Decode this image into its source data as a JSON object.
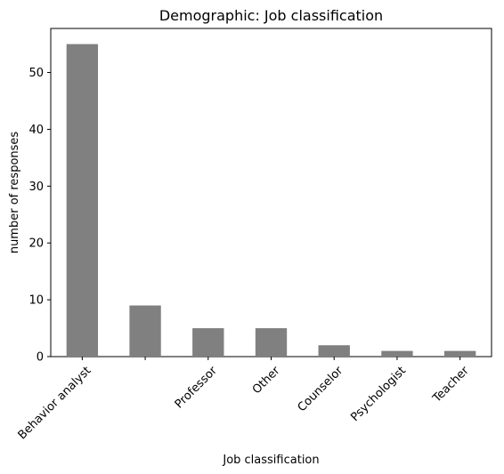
{
  "chart_data": {
    "type": "bar",
    "title": "Demographic: Job classification",
    "xlabel": "Job classification",
    "ylabel": "number of responses",
    "categories": [
      "Behavior analyst",
      "",
      "Professor",
      "Other",
      "Counselor",
      "Psychologist",
      "Teacher"
    ],
    "values": [
      55,
      9,
      5,
      5,
      2,
      1,
      1
    ],
    "ylim": [
      0,
      57.75
    ],
    "yticks": [
      0,
      10,
      20,
      30,
      40,
      50
    ],
    "xtick_rotation": 45,
    "grid": false,
    "legend": "none",
    "bar_color": "#808080"
  }
}
